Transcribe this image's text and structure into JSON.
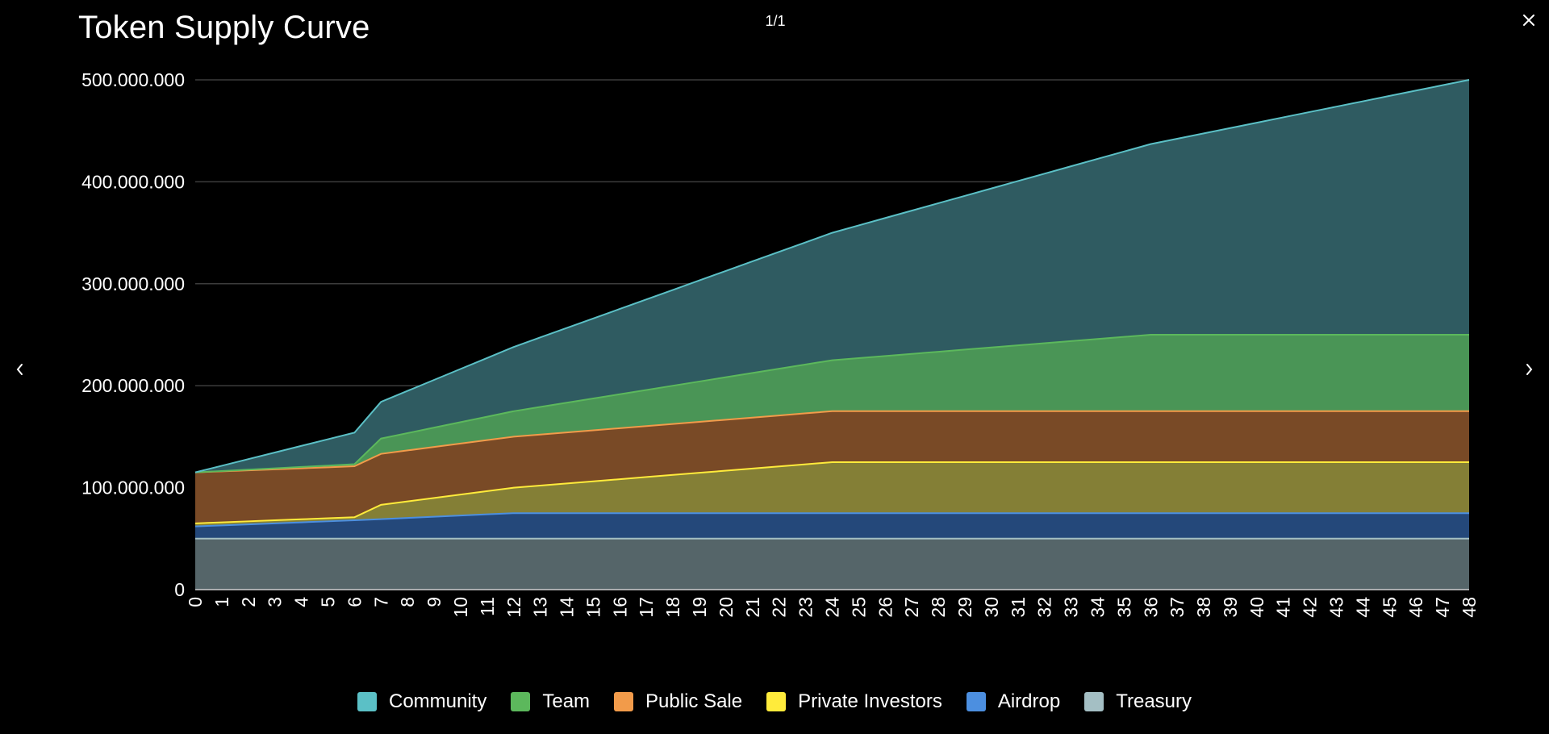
{
  "viewer": {
    "counter": "1/1",
    "close_icon": "close-icon",
    "prev_icon": "chevron-left-icon",
    "next_icon": "chevron-right-icon"
  },
  "chart_data": {
    "type": "area",
    "stacked": true,
    "title": "Token Supply Curve",
    "xlabel": "",
    "ylabel": "",
    "ylim": [
      0,
      500000000
    ],
    "yticks": [
      0,
      100000000,
      200000000,
      300000000,
      400000000,
      500000000
    ],
    "ytick_labels": [
      "0",
      "100.000.000",
      "200.000.000",
      "300.000.000",
      "400.000.000",
      "500.000.000"
    ],
    "x": [
      0,
      1,
      2,
      3,
      4,
      5,
      6,
      7,
      8,
      9,
      10,
      11,
      12,
      13,
      14,
      15,
      16,
      17,
      18,
      19,
      20,
      21,
      22,
      23,
      24,
      25,
      26,
      27,
      28,
      29,
      30,
      31,
      32,
      33,
      34,
      35,
      36,
      37,
      38,
      39,
      40,
      41,
      42,
      43,
      44,
      45,
      46,
      47,
      48
    ],
    "grid": true,
    "legend_position": "bottom",
    "series": [
      {
        "name": "Treasury",
        "color": "#a4bfc4",
        "fill": "#556569",
        "keyframes": [
          [
            0,
            50000000
          ],
          [
            48,
            50000000
          ]
        ]
      },
      {
        "name": "Airdrop",
        "color": "#4c8fe0",
        "fill": "#24487a",
        "keyframes": [
          [
            0,
            12000000
          ],
          [
            6,
            18000000
          ],
          [
            12,
            25000000
          ],
          [
            48,
            25000000
          ]
        ]
      },
      {
        "name": "Private Investors",
        "color": "#ffeb3b",
        "fill": "#847f36",
        "keyframes": [
          [
            0,
            3000000
          ],
          [
            6,
            3000000
          ],
          [
            7,
            14000000
          ],
          [
            12,
            25000000
          ],
          [
            24,
            50000000
          ],
          [
            48,
            50000000
          ]
        ]
      },
      {
        "name": "Public Sale",
        "color": "#f29b4a",
        "fill": "#794a26",
        "keyframes": [
          [
            0,
            50000000
          ],
          [
            6,
            50000000
          ],
          [
            7,
            50000000
          ],
          [
            12,
            50000000
          ],
          [
            24,
            50000000
          ],
          [
            48,
            50000000
          ]
        ]
      },
      {
        "name": "Team",
        "color": "#5cb85c",
        "fill": "#4a9556",
        "keyframes": [
          [
            0,
            0
          ],
          [
            6,
            2000000
          ],
          [
            7,
            15000000
          ],
          [
            12,
            25000000
          ],
          [
            24,
            50000000
          ],
          [
            36,
            75000000
          ],
          [
            48,
            75000000
          ]
        ]
      },
      {
        "name": "Community",
        "color": "#5bc0c6",
        "fill": "#2f5b61",
        "keyframes": [
          [
            0,
            0
          ],
          [
            6,
            31000000
          ],
          [
            7,
            36000000
          ],
          [
            12,
            63000000
          ],
          [
            24,
            125000000
          ],
          [
            36,
            187000000
          ],
          [
            48,
            250000000
          ]
        ]
      }
    ]
  },
  "legend": {
    "items": [
      {
        "label": "Community",
        "color": "#5bc0c6"
      },
      {
        "label": "Team",
        "color": "#5cb85c"
      },
      {
        "label": "Public Sale",
        "color": "#f29b4a"
      },
      {
        "label": "Private Investors",
        "color": "#ffeb3b"
      },
      {
        "label": "Airdrop",
        "color": "#4c8fe0"
      },
      {
        "label": "Treasury",
        "color": "#a4bfc4"
      }
    ]
  }
}
